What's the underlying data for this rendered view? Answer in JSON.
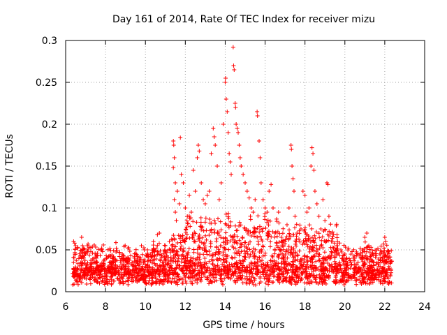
{
  "chart_data": {
    "type": "scatter",
    "title": "Day 161 of 2014, Rate Of TEC Index for receiver mizu",
    "xlabel": "GPS time / hours",
    "ylabel": "ROTI / TECUs",
    "xlim": [
      6,
      24
    ],
    "ylim": [
      0,
      0.3
    ],
    "xticks": [
      "6",
      "8",
      "10",
      "12",
      "14",
      "16",
      "18",
      "20",
      "22",
      "24"
    ],
    "yticks": [
      "0",
      "0.05",
      "0.1",
      "0.15",
      "0.2",
      "0.25",
      "0.3"
    ],
    "grid": true,
    "marker": "plus",
    "color": "#ff0000",
    "series": [
      {
        "name": "ROTI",
        "points": [
          [
            6.4,
            0.06
          ],
          [
            6.45,
            0.058
          ],
          [
            6.5,
            0.055
          ],
          [
            6.6,
            0.052
          ],
          [
            6.8,
            0.065
          ],
          [
            6.85,
            0.055
          ],
          [
            7.0,
            0.045
          ],
          [
            7.8,
            0.052
          ],
          [
            7.85,
            0.048
          ],
          [
            8.5,
            0.038
          ],
          [
            9.1,
            0.035
          ],
          [
            9.6,
            0.042
          ],
          [
            9.8,
            0.055
          ],
          [
            10.1,
            0.05
          ],
          [
            10.4,
            0.06
          ],
          [
            10.6,
            0.068
          ],
          [
            10.7,
            0.07
          ],
          [
            11.0,
            0.055
          ],
          [
            11.2,
            0.06
          ],
          [
            11.4,
            0.18
          ],
          [
            11.42,
            0.175
          ],
          [
            11.45,
            0.16
          ],
          [
            11.4,
            0.148
          ],
          [
            11.5,
            0.13
          ],
          [
            11.6,
            0.12
          ],
          [
            11.45,
            0.11
          ],
          [
            11.5,
            0.095
          ],
          [
            11.55,
            0.085
          ],
          [
            11.7,
            0.105
          ],
          [
            11.75,
            0.184
          ],
          [
            11.8,
            0.14
          ],
          [
            11.9,
            0.13
          ],
          [
            12.0,
            0.1
          ],
          [
            12.1,
            0.09
          ],
          [
            12.2,
            0.115
          ],
          [
            12.3,
            0.095
          ],
          [
            12.4,
            0.145
          ],
          [
            12.5,
            0.12
          ],
          [
            12.6,
            0.16
          ],
          [
            12.65,
            0.175
          ],
          [
            12.7,
            0.168
          ],
          [
            12.8,
            0.13
          ],
          [
            12.9,
            0.11
          ],
          [
            13.0,
            0.105
          ],
          [
            13.1,
            0.115
          ],
          [
            13.2,
            0.12
          ],
          [
            13.3,
            0.165
          ],
          [
            13.4,
            0.195
          ],
          [
            13.45,
            0.185
          ],
          [
            13.5,
            0.175
          ],
          [
            13.6,
            0.15
          ],
          [
            13.7,
            0.11
          ],
          [
            13.8,
            0.13
          ],
          [
            13.9,
            0.2
          ],
          [
            14.0,
            0.25
          ],
          [
            14.02,
            0.255
          ],
          [
            14.05,
            0.23
          ],
          [
            14.1,
            0.215
          ],
          [
            14.15,
            0.19
          ],
          [
            14.2,
            0.165
          ],
          [
            14.25,
            0.155
          ],
          [
            14.3,
            0.14
          ],
          [
            14.4,
            0.292
          ],
          [
            14.42,
            0.27
          ],
          [
            14.45,
            0.265
          ],
          [
            14.5,
            0.225
          ],
          [
            14.52,
            0.22
          ],
          [
            14.55,
            0.2
          ],
          [
            14.6,
            0.195
          ],
          [
            14.65,
            0.19
          ],
          [
            14.7,
            0.175
          ],
          [
            14.75,
            0.16
          ],
          [
            14.8,
            0.15
          ],
          [
            14.9,
            0.14
          ],
          [
            15.0,
            0.13
          ],
          [
            15.1,
            0.12
          ],
          [
            15.2,
            0.112
          ],
          [
            15.3,
            0.1
          ],
          [
            15.4,
            0.095
          ],
          [
            15.5,
            0.11
          ],
          [
            15.6,
            0.215
          ],
          [
            15.62,
            0.21
          ],
          [
            15.7,
            0.18
          ],
          [
            15.75,
            0.16
          ],
          [
            15.8,
            0.13
          ],
          [
            15.9,
            0.11
          ],
          [
            16.0,
            0.1
          ],
          [
            16.1,
            0.095
          ],
          [
            16.2,
            0.12
          ],
          [
            16.3,
            0.128
          ],
          [
            16.4,
            0.1
          ],
          [
            16.5,
            0.07
          ],
          [
            16.6,
            0.055
          ],
          [
            16.8,
            0.05
          ],
          [
            17.0,
            0.06
          ],
          [
            17.1,
            0.08
          ],
          [
            17.2,
            0.1
          ],
          [
            17.3,
            0.175
          ],
          [
            17.32,
            0.17
          ],
          [
            17.35,
            0.15
          ],
          [
            17.4,
            0.135
          ],
          [
            17.45,
            0.12
          ],
          [
            17.5,
            0.09
          ],
          [
            17.6,
            0.07
          ],
          [
            17.8,
            0.075
          ],
          [
            17.9,
            0.12
          ],
          [
            18.0,
            0.115
          ],
          [
            18.1,
            0.095
          ],
          [
            18.2,
            0.1
          ],
          [
            18.3,
            0.15
          ],
          [
            18.35,
            0.172
          ],
          [
            18.4,
            0.165
          ],
          [
            18.45,
            0.145
          ],
          [
            18.5,
            0.12
          ],
          [
            18.6,
            0.105
          ],
          [
            18.7,
            0.09
          ],
          [
            18.8,
            0.075
          ],
          [
            18.9,
            0.11
          ],
          [
            19.0,
            0.085
          ],
          [
            19.1,
            0.13
          ],
          [
            19.15,
            0.128
          ],
          [
            19.2,
            0.09
          ],
          [
            19.3,
            0.07
          ],
          [
            19.4,
            0.06
          ],
          [
            19.6,
            0.055
          ],
          [
            19.8,
            0.05
          ],
          [
            20.0,
            0.045
          ],
          [
            20.3,
            0.035
          ],
          [
            20.6,
            0.032
          ],
          [
            20.9,
            0.04
          ],
          [
            21.0,
            0.065
          ],
          [
            21.1,
            0.07
          ],
          [
            21.2,
            0.055
          ],
          [
            21.4,
            0.045
          ],
          [
            21.6,
            0.05
          ],
          [
            21.8,
            0.045
          ],
          [
            22.0,
            0.065
          ],
          [
            22.05,
            0.06
          ],
          [
            22.2,
            0.04
          ],
          [
            22.3,
            0.035
          ]
        ]
      }
    ]
  }
}
